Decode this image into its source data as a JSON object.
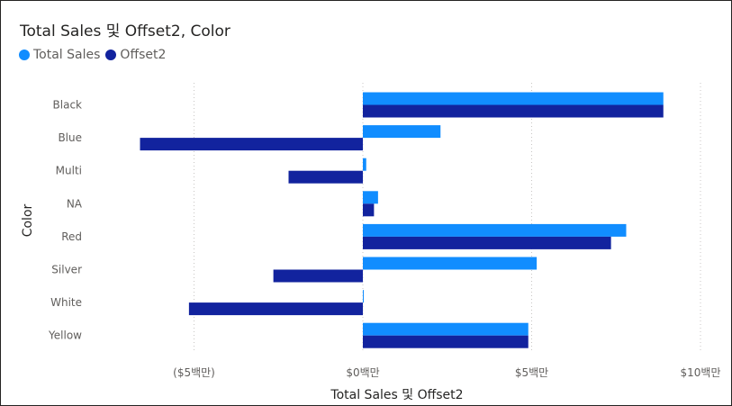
{
  "chart_data": {
    "type": "bar",
    "orientation": "horizontal",
    "title": "Total Sales 및 Offset2, Color",
    "xlabel": "Total Sales 및 Offset2",
    "ylabel": "Color",
    "categories": [
      "Black",
      "Blue",
      "Multi",
      "NA",
      "Red",
      "Silver",
      "White",
      "Yellow"
    ],
    "series": [
      {
        "name": "Total Sales",
        "color": "#118DFF",
        "values": [
          8.9,
          2.3,
          0.1,
          0.45,
          7.8,
          5.15,
          0.02,
          4.9
        ]
      },
      {
        "name": "Offset2",
        "color": "#12239E",
        "values": [
          8.9,
          -6.6,
          -2.2,
          0.33,
          7.35,
          -2.65,
          -5.15,
          4.9
        ]
      }
    ],
    "xticks": [
      {
        "value": -5,
        "label": "($5백만)"
      },
      {
        "value": 0,
        "label": "$0백만"
      },
      {
        "value": 5,
        "label": "$5백만"
      },
      {
        "value": 10,
        "label": "$10백만"
      }
    ],
    "xlim": [
      -10.5,
      10.5
    ],
    "units": "백만",
    "grid": true,
    "legend_position": "top-left"
  }
}
